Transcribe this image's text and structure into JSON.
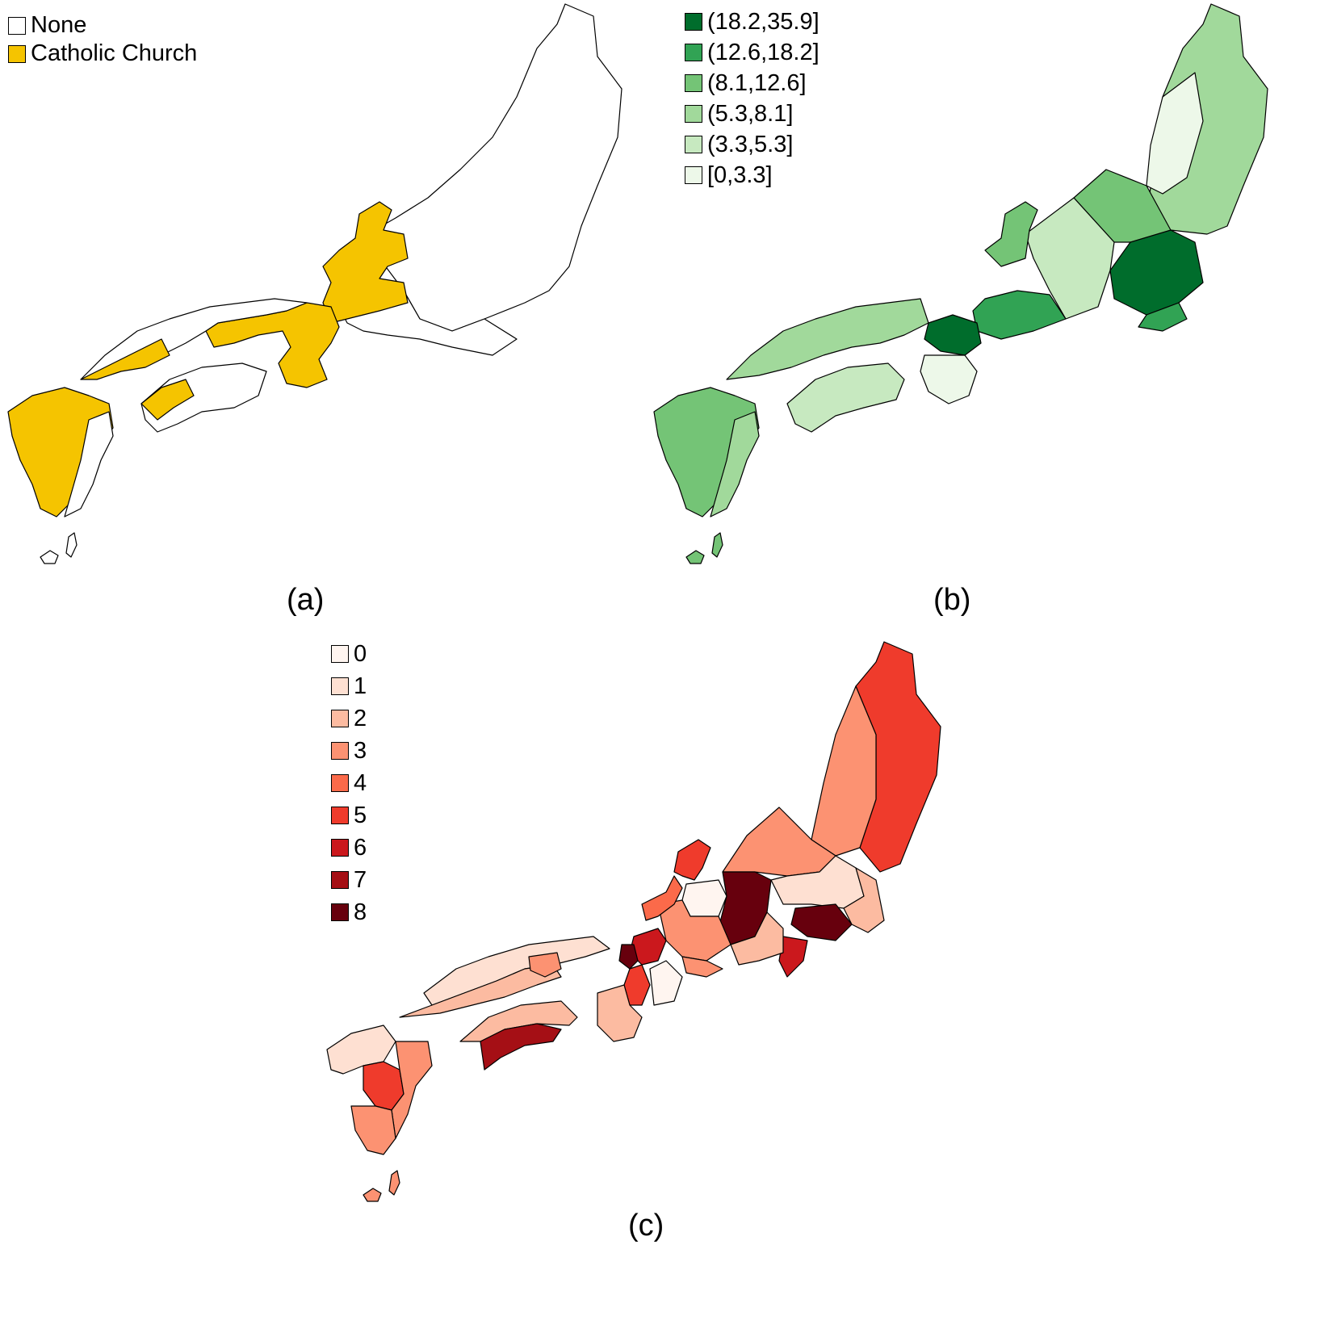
{
  "panels": [
    {
      "id": "a",
      "label": "(a)",
      "legend": [
        {
          "label": "None",
          "color": "#ffffff"
        },
        {
          "label": "Catholic Church",
          "color": "#f5c400"
        }
      ]
    },
    {
      "id": "b",
      "label": "(b)",
      "legend": [
        {
          "label": "(18.2,35.9]",
          "color": "#006d2c"
        },
        {
          "label": "(12.6,18.2]",
          "color": "#31a354"
        },
        {
          "label": "(8.1,12.6]",
          "color": "#74c476"
        },
        {
          "label": "(5.3,8.1]",
          "color": "#a1d99b"
        },
        {
          "label": "(3.3,5.3]",
          "color": "#c7e9c0"
        },
        {
          "label": "[0,3.3]",
          "color": "#edf8e9"
        }
      ]
    },
    {
      "id": "c",
      "label": "(c)",
      "legend": [
        {
          "label": "0",
          "color": "#fff5f0"
        },
        {
          "label": "1",
          "color": "#fee0d2"
        },
        {
          "label": "2",
          "color": "#fcbba1"
        },
        {
          "label": "3",
          "color": "#fc9272"
        },
        {
          "label": "4",
          "color": "#fb6a4a"
        },
        {
          "label": "5",
          "color": "#ef3b2c"
        },
        {
          "label": "6",
          "color": "#cb181d"
        },
        {
          "label": "7",
          "color": "#a50f15"
        },
        {
          "label": "8",
          "color": "#67000d"
        }
      ]
    }
  ]
}
